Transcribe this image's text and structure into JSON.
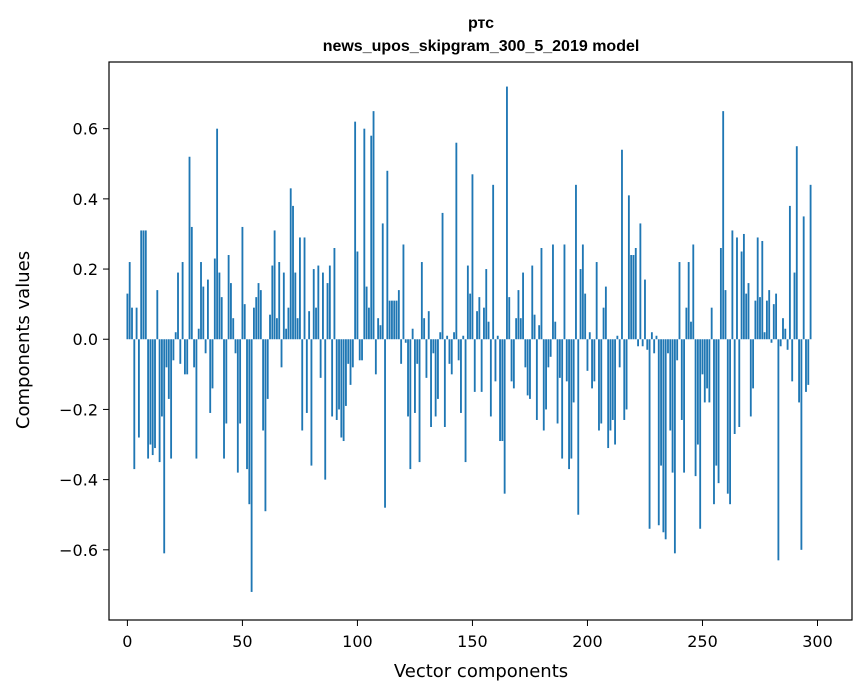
{
  "chart_data": {
    "type": "bar",
    "title": "ртс",
    "subtitle": "news_upos_skipgram_300_5_2019 model",
    "xlabel": "Vector components",
    "ylabel": "Components values",
    "xlim": [
      -8,
      315
    ],
    "ylim": [
      -0.8,
      0.79
    ],
    "x_ticks": [
      0,
      50,
      100,
      150,
      200,
      250,
      300
    ],
    "x_tick_labels": [
      "0",
      "50",
      "100",
      "150",
      "200",
      "250",
      "300"
    ],
    "y_ticks": [
      -0.6,
      -0.4,
      -0.2,
      0.0,
      0.2,
      0.4,
      0.6
    ],
    "y_tick_labels": [
      "−0.6",
      "−0.4",
      "−0.2",
      "0.0",
      "0.2",
      "0.4",
      "0.6"
    ],
    "bar_color": "#1f77b4",
    "grid": false,
    "x_start": 0,
    "values": [
      0.13,
      0.22,
      0.09,
      -0.37,
      0.09,
      -0.28,
      0.31,
      0.31,
      0.31,
      -0.34,
      -0.3,
      -0.33,
      -0.31,
      0.14,
      -0.35,
      -0.22,
      -0.61,
      -0.08,
      -0.17,
      -0.34,
      -0.06,
      0.02,
      0.19,
      -0.07,
      0.22,
      -0.1,
      -0.1,
      0.52,
      0.32,
      -0.08,
      -0.34,
      0.03,
      0.22,
      0.15,
      -0.04,
      0.17,
      -0.21,
      -0.14,
      0.23,
      0.6,
      0.19,
      0.12,
      -0.34,
      -0.24,
      0.24,
      0.16,
      0.06,
      -0.04,
      -0.38,
      -0.24,
      0.32,
      0.1,
      -0.37,
      -0.47,
      -0.72,
      0.09,
      0.12,
      0.16,
      0.14,
      -0.26,
      -0.49,
      -0.17,
      0.07,
      0.21,
      0.31,
      0.06,
      0.22,
      -0.08,
      0.19,
      0.03,
      0.09,
      0.43,
      0.38,
      0.19,
      0.06,
      0.29,
      -0.26,
      0.29,
      -0.21,
      0.08,
      -0.36,
      0.2,
      0.09,
      0.21,
      -0.11,
      0.19,
      -0.4,
      0.16,
      0.21,
      -0.22,
      0.26,
      -0.23,
      -0.2,
      -0.28,
      -0.29,
      -0.19,
      -0.07,
      -0.13,
      -0.08,
      0.62,
      0.25,
      -0.06,
      -0.06,
      0.6,
      0.15,
      0.09,
      0.58,
      0.65,
      -0.1,
      0.06,
      0.04,
      0.33,
      -0.48,
      0.48,
      0.11,
      0.11,
      0.11,
      0.11,
      0.14,
      -0.07,
      0.27,
      -0.01,
      -0.22,
      -0.37,
      0.03,
      -0.21,
      -0.07,
      -0.35,
      0.22,
      0.06,
      -0.11,
      0.08,
      -0.25,
      -0.04,
      -0.22,
      -0.17,
      0.02,
      0.36,
      -0.25,
      0.01,
      -0.07,
      -0.1,
      0.02,
      0.56,
      -0.06,
      -0.21,
      0.01,
      -0.35,
      0.21,
      0.13,
      0.47,
      -0.15,
      0.08,
      0.12,
      -0.15,
      0.09,
      0.2,
      0.05,
      -0.22,
      0.44,
      -0.12,
      0.01,
      -0.29,
      -0.29,
      -0.44,
      0.72,
      0.12,
      -0.12,
      -0.14,
      0.06,
      0.14,
      0.06,
      0.19,
      -0.08,
      -0.16,
      -0.17,
      0.21,
      0.07,
      -0.23,
      0.04,
      0.26,
      -0.26,
      -0.2,
      -0.08,
      -0.05,
      0.27,
      0.05,
      -0.24,
      -0.11,
      -0.34,
      0.27,
      -0.12,
      -0.37,
      -0.34,
      -0.18,
      0.44,
      -0.5,
      0.2,
      0.27,
      0.13,
      -0.09,
      0.02,
      -0.14,
      -0.12,
      0.22,
      -0.26,
      -0.24,
      0.09,
      0.15,
      -0.31,
      -0.26,
      -0.23,
      -0.3,
      0.01,
      -0.08,
      0.54,
      -0.23,
      -0.2,
      0.41,
      0.24,
      0.24,
      0.26,
      -0.02,
      0.33,
      -0.02,
      0.17,
      -0.03,
      -0.54,
      0.02,
      -0.04,
      0.01,
      -0.53,
      -0.36,
      -0.55,
      -0.57,
      -0.04,
      -0.26,
      -0.38,
      -0.61,
      -0.06,
      0.22,
      -0.23,
      -0.38,
      0.09,
      0.22,
      0.05,
      0.27,
      -0.39,
      -0.3,
      -0.54,
      -0.1,
      -0.18,
      -0.14,
      -0.18,
      0.09,
      -0.47,
      -0.36,
      -0.41,
      0.26,
      0.65,
      0.14,
      -0.44,
      -0.47,
      0.31,
      -0.27,
      0.29,
      -0.25,
      0.25,
      0.3,
      0.13,
      0.16,
      -0.22,
      -0.14,
      0.11,
      0.29,
      0.12,
      0.28,
      0.02,
      0.11,
      0.14,
      -0.01,
      0.1,
      0.13,
      -0.63,
      -0.02,
      0.06,
      0.03,
      -0.03,
      0.38,
      -0.12,
      0.19,
      0.55,
      -0.18,
      -0.6,
      0.35,
      -0.15,
      -0.13,
      0.44,
      0.0,
      0.0
    ]
  }
}
